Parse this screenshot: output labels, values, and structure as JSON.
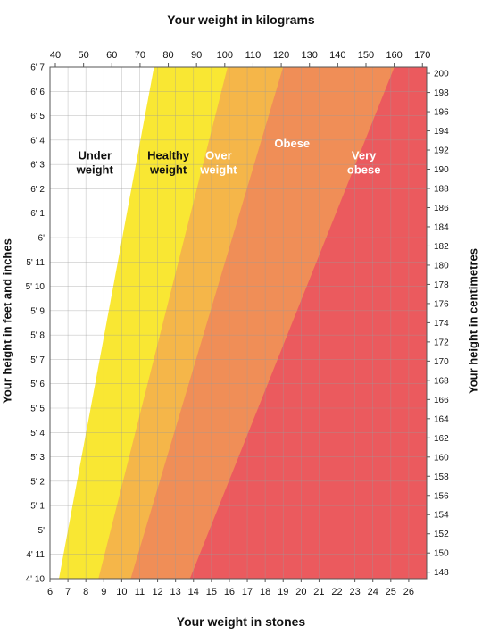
{
  "chart_data": {
    "type": "area",
    "title_top": "Your weight in kilograms",
    "title_bottom": "Your weight in stones",
    "title_left": "Your height in feet and inches",
    "title_right": "Your height in centimetres",
    "x_stones": {
      "lim": [
        6,
        27
      ],
      "ticks": [
        "6",
        "7",
        "8",
        "9",
        "10",
        "11",
        "12",
        "13",
        "14",
        "15",
        "16",
        "17",
        "18",
        "19",
        "20",
        "21",
        "22",
        "23",
        "24",
        "25",
        "26"
      ]
    },
    "x_kg": {
      "lim": [
        38.1,
        171.5
      ],
      "ticks": [
        "40",
        "50",
        "60",
        "70",
        "80",
        "90",
        "100",
        "110",
        "120",
        "130",
        "140",
        "150",
        "160",
        "170"
      ]
    },
    "y_feet": {
      "lim_inches": [
        58,
        79
      ],
      "ticks": [
        "4' 10",
        "4' 11",
        "5'",
        "5' 1",
        "5' 2",
        "5' 3",
        "5' 4",
        "5' 5",
        "5' 6",
        "5' 7",
        "5' 8",
        "5' 9",
        "5' 10",
        "5' 11",
        "6'",
        "6' 1",
        "6' 2",
        "6' 3",
        "6' 4",
        "6' 5",
        "6' 6",
        "6' 7"
      ]
    },
    "y_cm": {
      "ticks": [
        "148",
        "150",
        "152",
        "154",
        "156",
        "158",
        "160",
        "162",
        "164",
        "166",
        "168",
        "170",
        "172",
        "174",
        "176",
        "178",
        "180",
        "182",
        "184",
        "186",
        "188",
        "190",
        "192",
        "194",
        "196",
        "198",
        "200"
      ]
    },
    "grid": true,
    "bands": [
      {
        "name": "Under\nweight",
        "color": "#ffffff",
        "label_color": "#111111",
        "boundary_stones": [
          6.5,
          11.8
        ]
      },
      {
        "name": "Healthy\nweight",
        "color": "#f9e733",
        "label_color": "#111111",
        "boundary_stones": [
          8.7,
          15.9
        ]
      },
      {
        "name": "Over\nweight",
        "color": "#f5b649",
        "label_color": "#ffffff",
        "boundary_stones": [
          10.5,
          19.0
        ]
      },
      {
        "name": "Obese",
        "color": "#f08e57",
        "label_color": "#ffffff",
        "boundary_stones": [
          13.8,
          25.2
        ]
      },
      {
        "name": "Very\nobese",
        "color": "#eb5a5e",
        "label_color": "#ffffff",
        "boundary_stones": null
      }
    ]
  }
}
